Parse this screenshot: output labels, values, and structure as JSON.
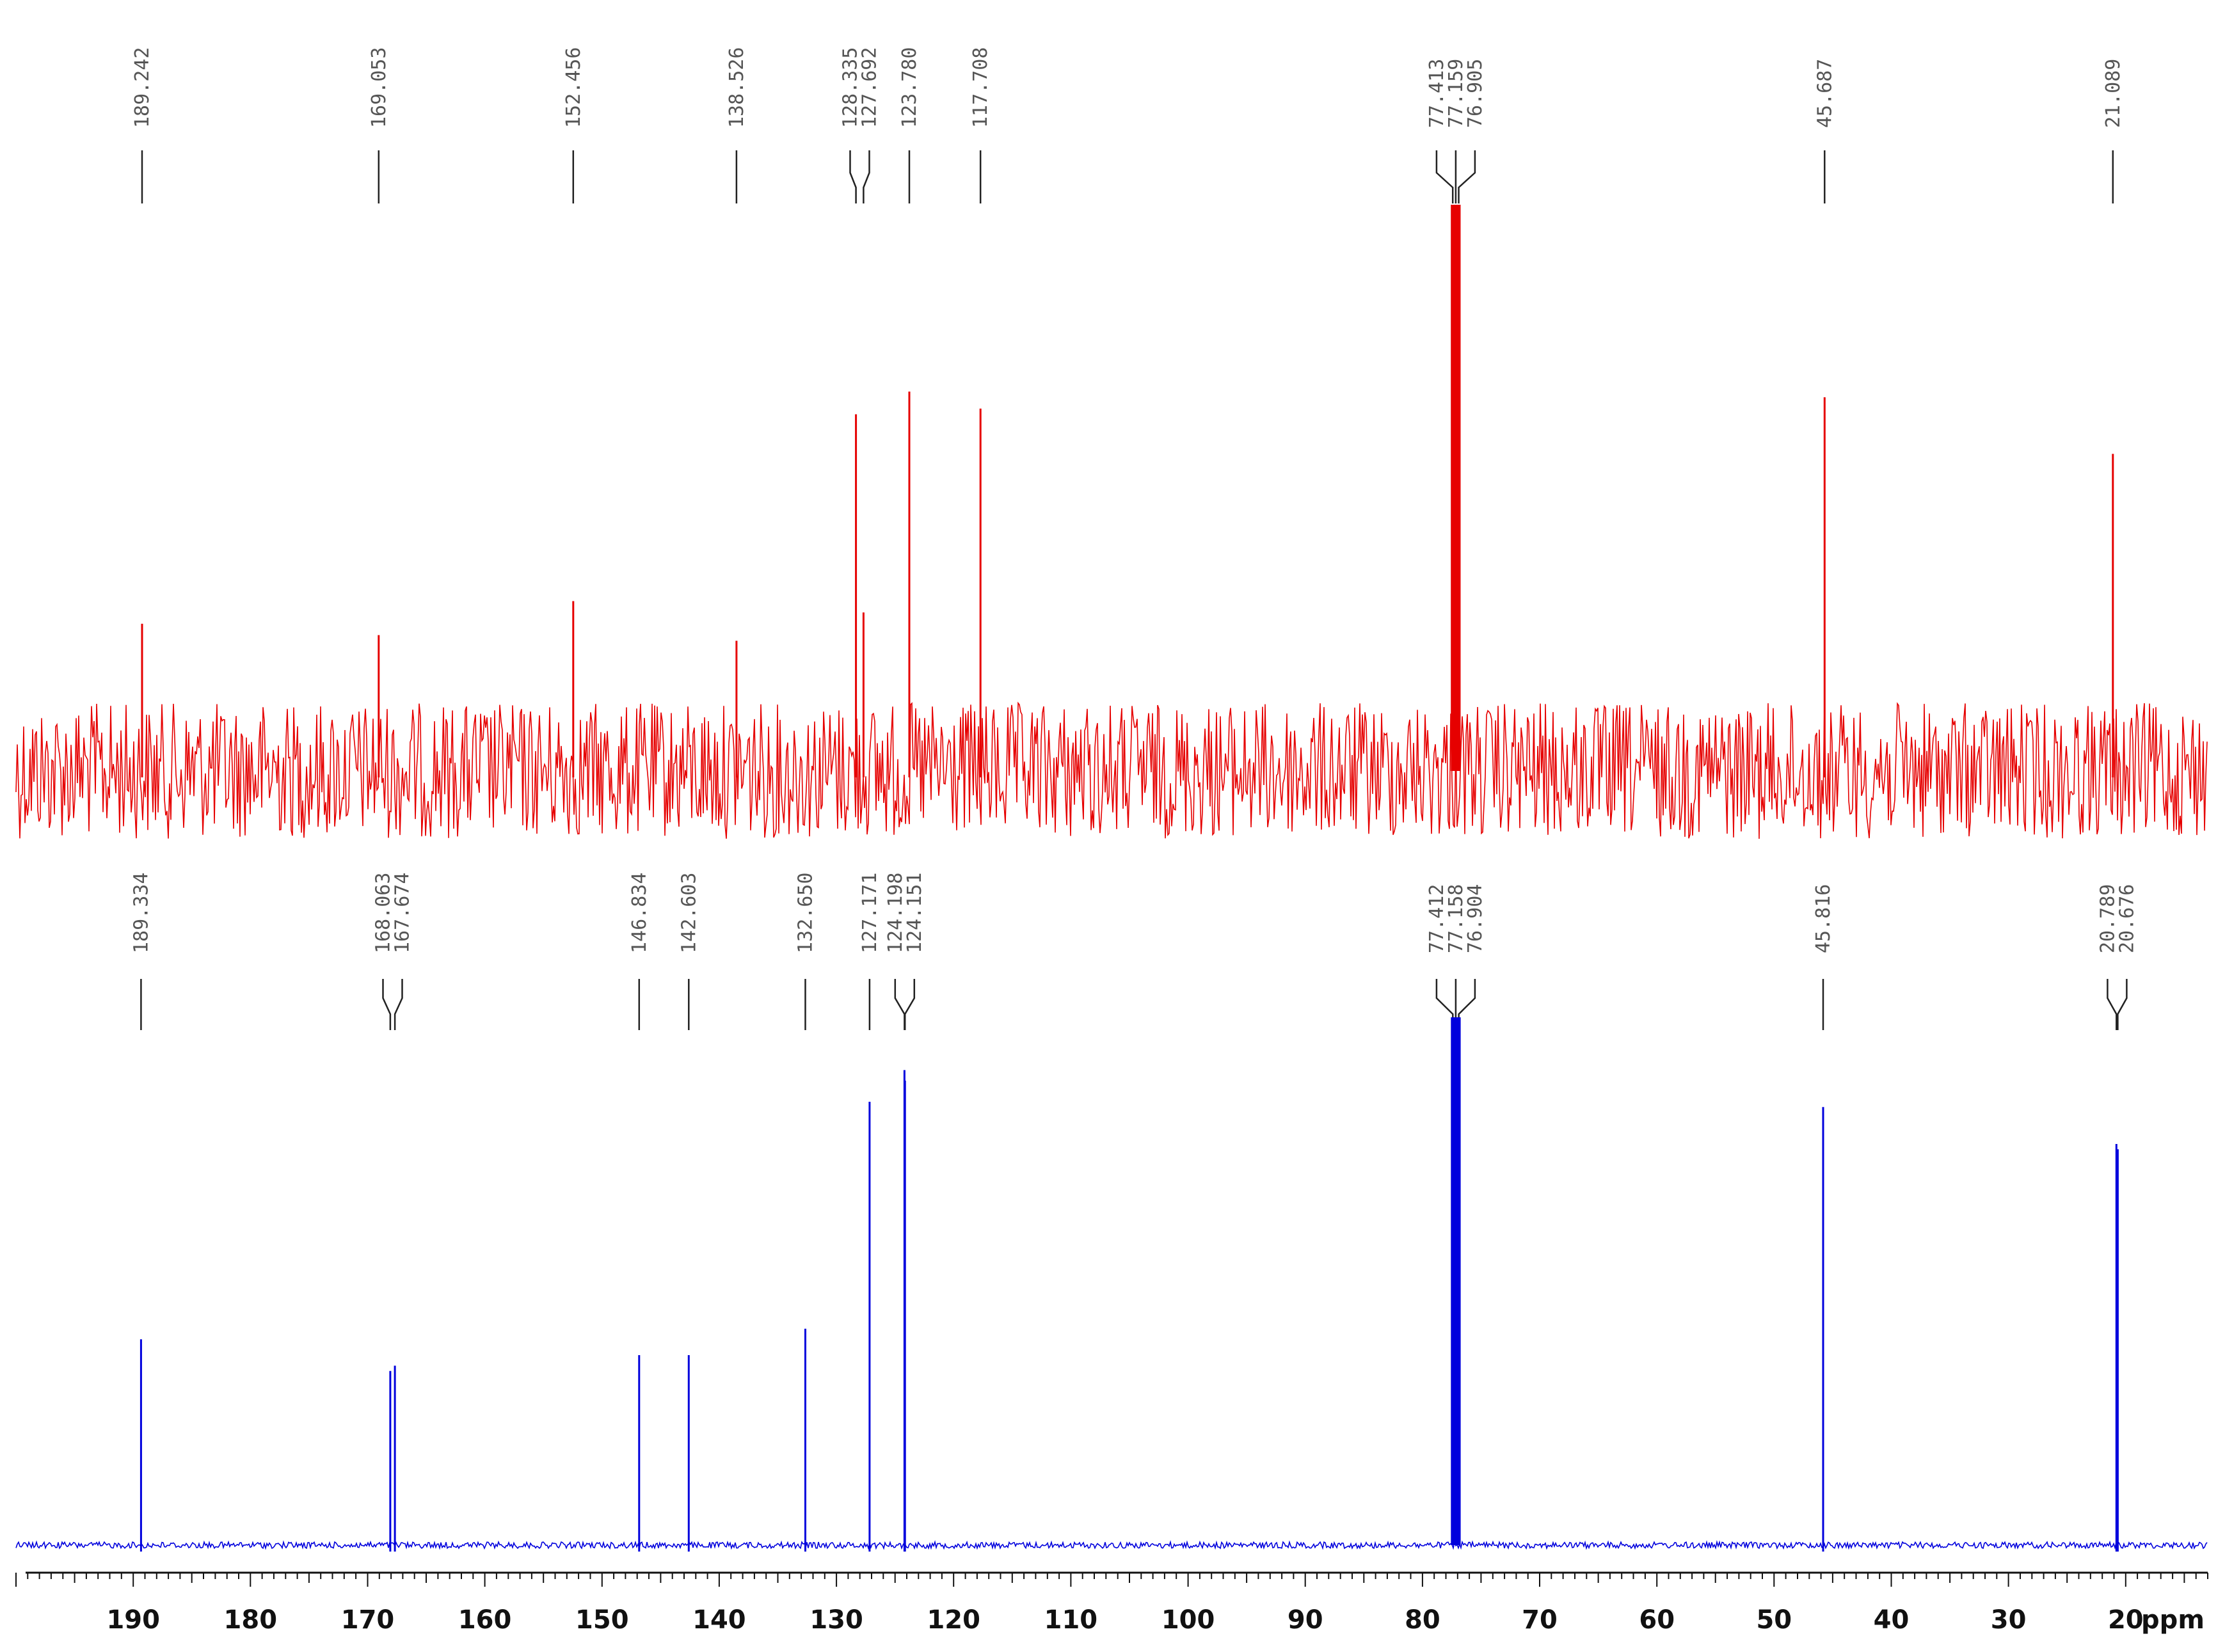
{
  "chart_data": {
    "type": "line",
    "xlabel": "ppm",
    "xlim": [
      200,
      13
    ],
    "x_reversed": true,
    "ticks": [
      "190",
      "180",
      "170",
      "160",
      "150",
      "140",
      "130",
      "120",
      "110",
      "100",
      "90",
      "80",
      "70",
      "60",
      "50",
      "40",
      "30",
      "20"
    ],
    "tick_values": [
      190,
      180,
      170,
      160,
      150,
      140,
      130,
      120,
      110,
      100,
      90,
      80,
      70,
      60,
      50,
      40,
      30,
      20
    ],
    "minor_tick_step": 1,
    "series": [
      {
        "color": "#e60000",
        "baseline_noise": 0.12,
        "peaks": [
          {
            "x": 189.242,
            "height": 0.26
          },
          {
            "x": 169.053,
            "height": 0.24
          },
          {
            "x": 152.456,
            "height": 0.3
          },
          {
            "x": 138.526,
            "height": 0.23
          },
          {
            "x": 128.335,
            "height": 0.63
          },
          {
            "x": 127.692,
            "height": 0.28
          },
          {
            "x": 123.78,
            "height": 0.67
          },
          {
            "x": 117.708,
            "height": 0.64
          },
          {
            "x": 77.413,
            "height": 1.0
          },
          {
            "x": 77.159,
            "height": 1.0
          },
          {
            "x": 76.905,
            "height": 1.0
          },
          {
            "x": 45.687,
            "height": 0.66
          },
          {
            "x": 21.089,
            "height": 0.56
          }
        ],
        "peak_labels": [
          "189.242",
          "169.053",
          "152.456",
          "138.526",
          "128.335",
          "127.692",
          "123.780",
          "117.708",
          "77.413",
          "77.159",
          "76.905",
          "45.687",
          "21.089"
        ]
      },
      {
        "color": "#0000dd",
        "baseline_noise": 0.006,
        "peaks": [
          {
            "x": 189.334,
            "height": 0.39
          },
          {
            "x": 168.063,
            "height": 0.33
          },
          {
            "x": 167.674,
            "height": 0.34
          },
          {
            "x": 146.834,
            "height": 0.36
          },
          {
            "x": 142.603,
            "height": 0.36
          },
          {
            "x": 132.65,
            "height": 0.41
          },
          {
            "x": 127.171,
            "height": 0.84
          },
          {
            "x": 124.198,
            "height": 0.9
          },
          {
            "x": 124.151,
            "height": 0.88
          },
          {
            "x": 77.412,
            "height": 1.0
          },
          {
            "x": 77.158,
            "height": 1.0
          },
          {
            "x": 76.904,
            "height": 1.0
          },
          {
            "x": 45.816,
            "height": 0.83
          },
          {
            "x": 20.789,
            "height": 0.76
          },
          {
            "x": 20.676,
            "height": 0.75
          }
        ],
        "peak_labels": [
          "189.334",
          "168.063",
          "167.674",
          "146.834",
          "142.603",
          "132.650",
          "127.171",
          "124.198",
          "124.151",
          "77.412",
          "77.158",
          "76.904",
          "45.816",
          "20.789",
          "20.676"
        ]
      }
    ]
  }
}
